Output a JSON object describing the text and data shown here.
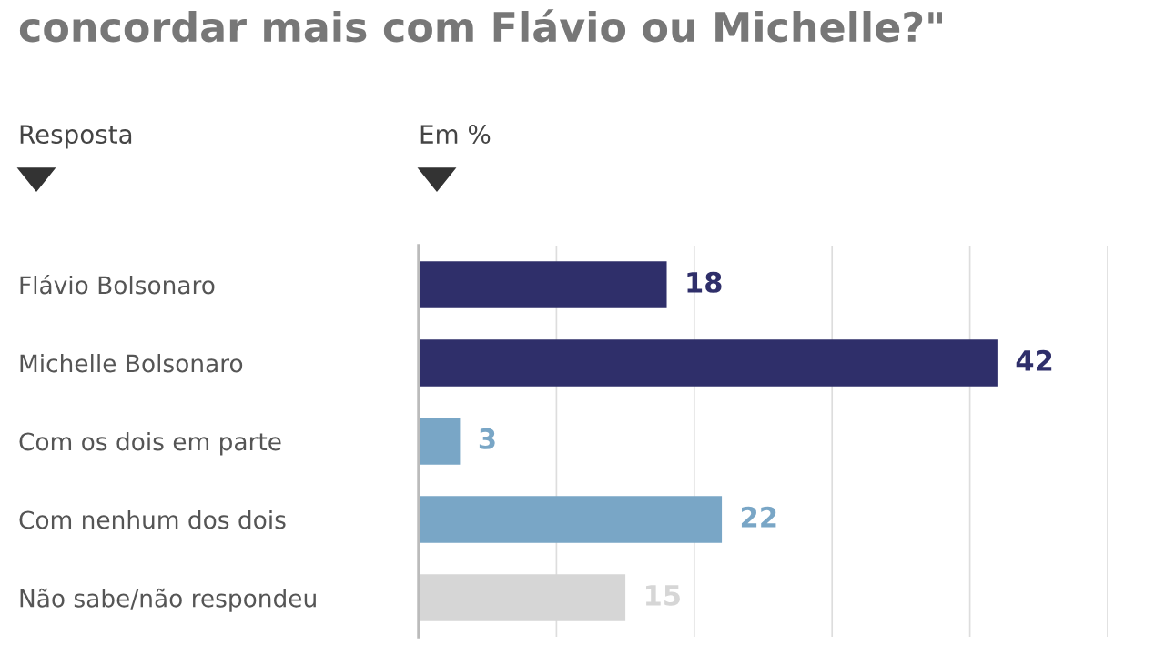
{
  "chart_data": {
    "type": "bar",
    "orientation": "horizontal",
    "title": "concordar mais com Flávio ou Michelle?\"",
    "annotations": [
      "Resposta",
      "Em %"
    ],
    "categories": [
      "Flávio Bolsonaro",
      "Michelle Bolsonaro",
      "Com os dois em parte",
      "Com nenhum dos dois",
      "Não sabe/não respondeu"
    ],
    "values": [
      18,
      42,
      3,
      22,
      15
    ],
    "colors": [
      "#2f2f6a",
      "#2f2f6a",
      "#79a6c6",
      "#79a6c6",
      "#d6d6d6"
    ],
    "xlim": [
      0,
      50
    ],
    "xticks": [
      {
        "value": 0,
        "label": null
      },
      {
        "value": 10,
        "label": null
      },
      {
        "value": 20,
        "label": null
      },
      {
        "value": 30,
        "label": null
      },
      {
        "value": 40,
        "label": null
      },
      {
        "value": 50,
        "label": null
      }
    ],
    "grid": "x",
    "tick_labels": "y",
    "data_labels": true
  }
}
